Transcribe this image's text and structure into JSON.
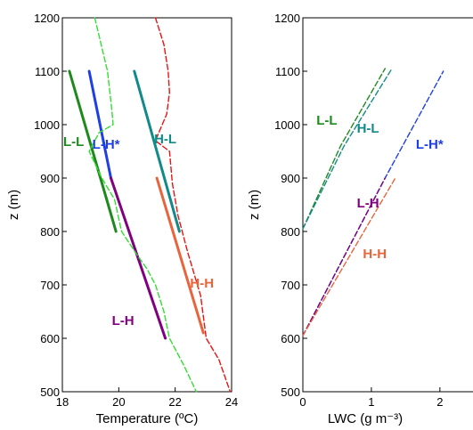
{
  "chart_data": [
    {
      "type": "line",
      "xlabel": "Temperature (ºC)",
      "ylabel": "z (m)",
      "xlim": [
        18,
        24
      ],
      "ylim": [
        500,
        1200
      ],
      "xticks": [
        "18",
        "20",
        "22",
        "24"
      ],
      "yticks": [
        "500",
        "600",
        "700",
        "800",
        "900",
        "1000",
        "1100",
        "1200"
      ],
      "grid": false,
      "series": [
        {
          "name": "L-L",
          "style": "solid",
          "color": "#1e8a1e",
          "width": 3,
          "points": [
            [
              18.25,
              1100
            ],
            [
              19.9,
              800
            ]
          ]
        },
        {
          "name": "L-H*",
          "style": "solid",
          "color": "#1f3fe6",
          "width": 3,
          "points": [
            [
              18.95,
              1100
            ],
            [
              19.72,
              900
            ]
          ]
        },
        {
          "name": "L-H",
          "style": "solid",
          "color": "#800080",
          "width": 3,
          "points": [
            [
              19.72,
              900
            ],
            [
              21.65,
              600
            ]
          ]
        },
        {
          "name": "H-L",
          "style": "solid",
          "color": "#138a8a",
          "width": 3,
          "points": [
            [
              20.55,
              1100
            ],
            [
              22.15,
              800
            ]
          ]
        },
        {
          "name": "H-H",
          "style": "solid",
          "color": "#e8643c",
          "width": 3,
          "points": [
            [
              21.35,
              900
            ],
            [
              23.0,
              610
            ]
          ]
        },
        {
          "name": "",
          "style": "dashed",
          "color": "#33dd33",
          "width": 1.4,
          "points": [
            [
              19.15,
              1200
            ],
            [
              19.6,
              1100
            ],
            [
              19.75,
              1030
            ],
            [
              19.8,
              1000
            ],
            [
              19.3,
              985
            ],
            [
              18.95,
              950
            ],
            [
              19.4,
              900
            ],
            [
              19.85,
              860
            ],
            [
              20.1,
              800
            ],
            [
              20.6,
              760
            ],
            [
              21.0,
              730
            ],
            [
              21.3,
              700
            ],
            [
              21.6,
              650
            ],
            [
              21.8,
              600
            ],
            [
              22.3,
              550
            ],
            [
              22.75,
              500
            ]
          ]
        },
        {
          "name": "",
          "style": "dashed",
          "color": "#ee1111",
          "width": 1.4,
          "points": [
            [
              21.3,
              1200
            ],
            [
              21.6,
              1150
            ],
            [
              21.75,
              1100
            ],
            [
              21.8,
              1060
            ],
            [
              21.7,
              1020
            ],
            [
              21.3,
              970
            ],
            [
              21.8,
              950
            ],
            [
              21.9,
              890
            ],
            [
              22.1,
              830
            ],
            [
              22.45,
              760
            ],
            [
              22.9,
              680
            ],
            [
              23.1,
              600
            ],
            [
              23.55,
              560
            ],
            [
              23.95,
              500
            ]
          ]
        }
      ],
      "annotations": [
        {
          "text": "L-L",
          "x": 18.4,
          "y": 960,
          "color": "#1e8a1e"
        },
        {
          "text": "L-H*",
          "x": 19.55,
          "y": 955,
          "color": "#1f3fe6"
        },
        {
          "text": "H-L",
          "x": 21.65,
          "y": 965,
          "color": "#138a8a"
        },
        {
          "text": "L-H",
          "x": 20.15,
          "y": 625,
          "color": "#800080"
        },
        {
          "text": "H-H",
          "x": 22.95,
          "y": 695,
          "color": "#e8643c"
        }
      ]
    },
    {
      "type": "line",
      "xlabel": "LWC (g m⁻³)",
      "ylabel": "z (m)",
      "xlim": [
        0,
        2.6
      ],
      "ylim": [
        500,
        1200
      ],
      "xticks": [
        "0",
        "1",
        "2"
      ],
      "yticks": [
        "500",
        "600",
        "700",
        "800",
        "900",
        "1000",
        "1100",
        "1200"
      ],
      "grid": false,
      "series": [
        {
          "name": "L-L",
          "style": "dashed",
          "color": "#1e8a1e",
          "width": 1.4,
          "points": [
            [
              0.0,
              805
            ],
            [
              0.55,
              960
            ],
            [
              1.2,
              1105
            ]
          ]
        },
        {
          "name": "H-L",
          "style": "dashed",
          "color": "#138a8a",
          "width": 1.4,
          "points": [
            [
              0.0,
              805
            ],
            [
              0.6,
              960
            ],
            [
              1.3,
              1105
            ]
          ]
        },
        {
          "name": "L-H*",
          "style": "dashed",
          "color": "#1f3fe6",
          "width": 1.4,
          "points": [
            [
              0.0,
              605
            ],
            [
              1.2,
              900
            ],
            [
              2.05,
              1100
            ]
          ]
        },
        {
          "name": "L-H",
          "style": "dashed",
          "color": "#800080",
          "width": 1.4,
          "points": [
            [
              0.0,
              605
            ],
            [
              1.2,
              900
            ]
          ]
        },
        {
          "name": "H-H",
          "style": "dashed",
          "color": "#e8643c",
          "width": 1.4,
          "points": [
            [
              0.0,
              605
            ],
            [
              1.35,
              900
            ]
          ]
        }
      ],
      "annotations": [
        {
          "text": "L-L",
          "x": 0.35,
          "y": 1000,
          "color": "#1e8a1e"
        },
        {
          "text": "H-L",
          "x": 0.95,
          "y": 985,
          "color": "#138a8a"
        },
        {
          "text": "L-H*",
          "x": 1.85,
          "y": 955,
          "color": "#1f3fe6"
        },
        {
          "text": "L-H",
          "x": 0.95,
          "y": 845,
          "color": "#800080"
        },
        {
          "text": "H-H",
          "x": 1.05,
          "y": 750,
          "color": "#e8643c"
        }
      ]
    }
  ]
}
